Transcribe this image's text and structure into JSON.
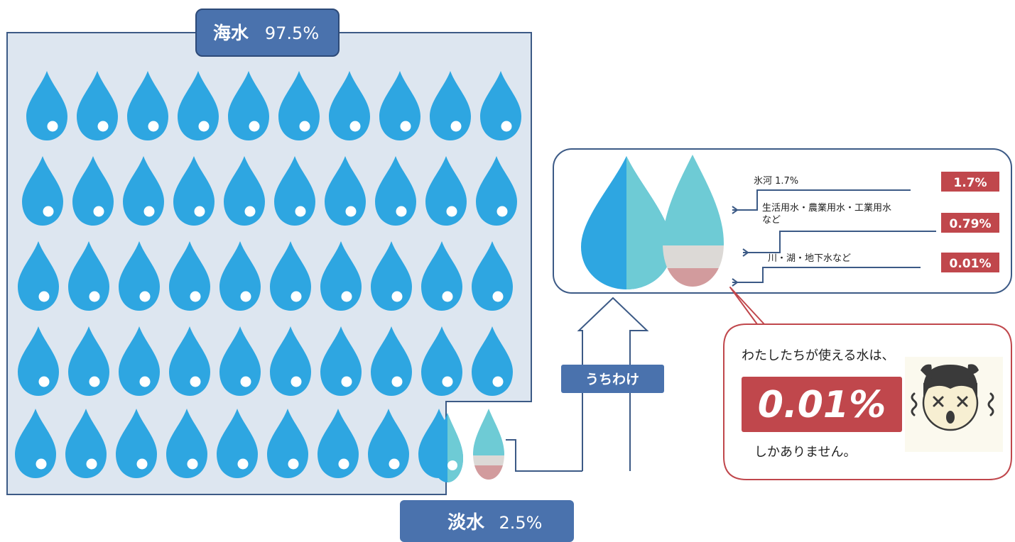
{
  "seawater_label": "海水",
  "seawater_value": "97.5%",
  "freshwater_label": "淡水",
  "freshwater_value": "2.5%",
  "breakdown_label": "うちわけ",
  "breakdown": [
    {
      "label": "氷河  1.7%",
      "value": "1.7%"
    },
    {
      "label": "生活用水・農業用水・工業用水",
      "label2": "など",
      "value": "0.79%"
    },
    {
      "label": "川・湖・地下水など",
      "value": "0.01%"
    }
  ],
  "callout": {
    "line1": "わたしたちが使える水は、",
    "big_value": "0.01%",
    "line2": "しかありません。"
  },
  "colors": {
    "drop_blue": "#2ea6e1",
    "drop_cyan": "#6ecbd5",
    "grey_band": "#dcd9d6",
    "pink_band": "#d29b9d",
    "panel_bg": "#dde6f0",
    "panel_border": "#3c5a86",
    "label_bg": "#4a72ad",
    "red_badge": "#c0474c",
    "callout_border": "#c0474c"
  },
  "icons": [
    "water-drop-icon",
    "surprised-face-icon"
  ]
}
